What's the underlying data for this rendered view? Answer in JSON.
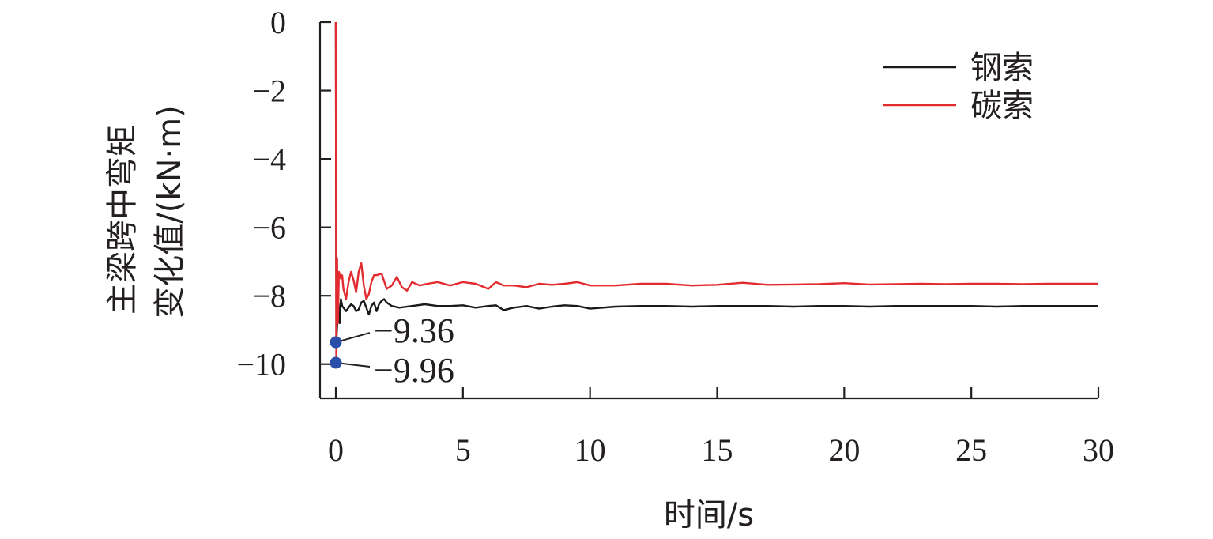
{
  "chart_data": {
    "type": "line",
    "xlabel": "时间/s",
    "ylabel_lines": [
      "主梁跨中弯矩",
      "变化值/(kN·m)"
    ],
    "xlim": [
      0,
      30
    ],
    "ylim": [
      -11,
      0
    ],
    "xticks": [
      0,
      5,
      10,
      15,
      20,
      25,
      30
    ],
    "yticks": [
      0,
      -2,
      -4,
      -6,
      -8,
      -10
    ],
    "xtick_labels": [
      "0",
      "5",
      "10",
      "15",
      "20",
      "25",
      "30"
    ],
    "ytick_labels": [
      "0",
      "−2",
      "−4",
      "−6",
      "−8",
      "−10"
    ],
    "legend_position": "top-right",
    "grid": false,
    "series": [
      {
        "name": "钢索",
        "color": "#1a1a1a",
        "x": [
          0,
          0.02,
          0.05,
          0.1,
          0.15,
          0.2,
          0.25,
          0.3,
          0.4,
          0.5,
          0.6,
          0.7,
          0.8,
          0.9,
          1.0,
          1.1,
          1.2,
          1.3,
          1.4,
          1.5,
          1.6,
          1.7,
          1.8,
          1.9,
          2.0,
          2.2,
          2.5,
          3.0,
          3.5,
          4.0,
          4.5,
          5.0,
          5.5,
          6.0,
          6.3,
          6.6,
          7.0,
          7.5,
          8.0,
          8.5,
          9.0,
          9.5,
          10.0,
          11,
          12,
          13,
          14,
          15,
          16,
          17,
          18,
          19,
          20,
          21,
          22,
          23,
          24,
          25,
          26,
          27,
          28,
          29,
          30
        ],
        "y": [
          0,
          -9.36,
          -8.9,
          -8.2,
          -8.8,
          -8.1,
          -8.3,
          -8.35,
          -8.45,
          -8.35,
          -8.25,
          -8.3,
          -8.45,
          -8.4,
          -8.2,
          -8.15,
          -8.35,
          -8.55,
          -8.3,
          -8.2,
          -8.45,
          -8.25,
          -8.15,
          -8.1,
          -8.2,
          -8.3,
          -8.35,
          -8.3,
          -8.25,
          -8.3,
          -8.3,
          -8.28,
          -8.35,
          -8.3,
          -8.28,
          -8.42,
          -8.35,
          -8.3,
          -8.38,
          -8.32,
          -8.28,
          -8.3,
          -8.38,
          -8.32,
          -8.3,
          -8.3,
          -8.32,
          -8.3,
          -8.3,
          -8.3,
          -8.32,
          -8.3,
          -8.3,
          -8.32,
          -8.3,
          -8.3,
          -8.3,
          -8.3,
          -8.32,
          -8.3,
          -8.3,
          -8.3,
          -8.3
        ]
      },
      {
        "name": "碳索",
        "color": "#e32b2f",
        "x": [
          0,
          0.02,
          0.05,
          0.08,
          0.12,
          0.2,
          0.25,
          0.3,
          0.4,
          0.5,
          0.6,
          0.7,
          0.8,
          0.9,
          1.0,
          1.1,
          1.2,
          1.3,
          1.4,
          1.5,
          1.6,
          1.8,
          2.0,
          2.2,
          2.4,
          2.6,
          2.8,
          3.0,
          3.3,
          3.6,
          4.0,
          4.5,
          5.0,
          5.5,
          6.0,
          6.3,
          6.6,
          7.0,
          7.5,
          8.0,
          8.5,
          9.0,
          9.5,
          10.0,
          11,
          12,
          13,
          14,
          15,
          16,
          17,
          18,
          19,
          20,
          21,
          22,
          23,
          24,
          25,
          26,
          27,
          28,
          29,
          30
        ],
        "y": [
          0,
          -9.96,
          -6.9,
          -8.8,
          -7.3,
          -7.5,
          -7.4,
          -7.8,
          -8.1,
          -7.6,
          -7.3,
          -7.55,
          -7.9,
          -7.3,
          -7.05,
          -7.7,
          -8.1,
          -7.95,
          -7.6,
          -7.4,
          -7.4,
          -7.35,
          -7.8,
          -7.7,
          -7.45,
          -7.75,
          -7.85,
          -7.6,
          -7.7,
          -7.65,
          -7.6,
          -7.7,
          -7.6,
          -7.65,
          -7.8,
          -7.6,
          -7.7,
          -7.7,
          -7.75,
          -7.65,
          -7.68,
          -7.65,
          -7.6,
          -7.7,
          -7.7,
          -7.65,
          -7.65,
          -7.7,
          -7.68,
          -7.62,
          -7.68,
          -7.67,
          -7.66,
          -7.63,
          -7.67,
          -7.66,
          -7.65,
          -7.66,
          -7.65,
          -7.65,
          -7.66,
          -7.65,
          -7.65,
          -7.65
        ]
      }
    ],
    "annotations": [
      {
        "label": "−9.36",
        "x": 0,
        "y": -9.36,
        "marker_color": "#2b4fa8"
      },
      {
        "label": "−9.96",
        "x": 0,
        "y": -9.96,
        "marker_color": "#2b4fa8"
      }
    ]
  }
}
